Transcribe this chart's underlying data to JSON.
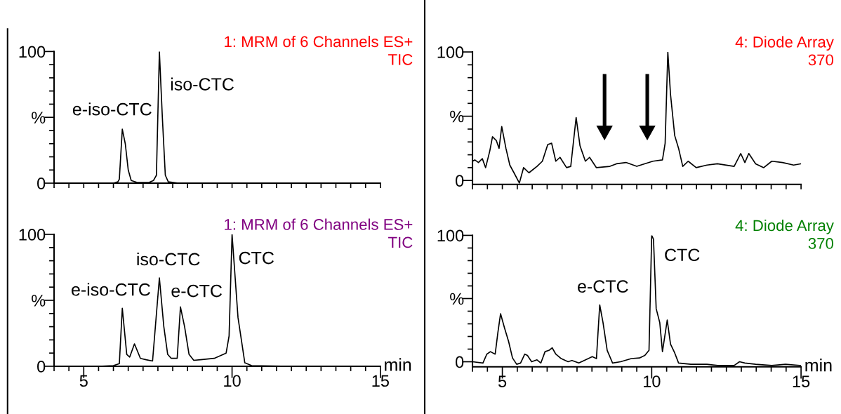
{
  "chart_data": [
    {
      "type": "line",
      "title": "1: MRM of 6 Channels ES+\nTIC",
      "tick_labels": "y",
      "xlim": [
        4,
        15
      ],
      "ylim": [
        0,
        100
      ],
      "xticks": [
        {
          "value": 4,
          "label": null
        },
        {
          "value": 4.5,
          "label": null
        },
        {
          "value": 5,
          "label": null
        },
        {
          "value": 5.5,
          "label": null
        },
        {
          "value": 6,
          "label": null
        },
        {
          "value": 6.5,
          "label": null
        },
        {
          "value": 7,
          "label": null
        },
        {
          "value": 7.5,
          "label": null
        },
        {
          "value": 8,
          "label": null
        },
        {
          "value": 8.5,
          "label": null
        },
        {
          "value": 9,
          "label": null
        },
        {
          "value": 9.5,
          "label": null
        },
        {
          "value": 10,
          "label": null
        },
        {
          "value": 10.5,
          "label": null
        },
        {
          "value": 11,
          "label": null
        },
        {
          "value": 11.5,
          "label": null
        },
        {
          "value": 12,
          "label": null
        },
        {
          "value": 12.5,
          "label": null
        },
        {
          "value": 13,
          "label": null
        },
        {
          "value": 13.5,
          "label": null
        },
        {
          "value": 14,
          "label": null
        },
        {
          "value": 14.5,
          "label": null
        },
        {
          "value": 15,
          "label": null
        }
      ],
      "yticks": [
        0,
        {
          "value": 10,
          "label": null
        },
        {
          "value": 20,
          "label": null
        },
        {
          "value": 30,
          "label": null
        },
        {
          "value": 40,
          "label": null
        },
        {
          "value": 50,
          "label": "%"
        },
        {
          "value": 60,
          "label": null
        },
        {
          "value": 70,
          "label": null
        },
        {
          "value": 80,
          "label": null
        },
        {
          "value": 90,
          "label": null
        },
        100
      ],
      "series": [
        {
          "color": "#000000",
          "x": [
            4,
            6.0,
            6.15,
            6.2,
            6.3,
            6.4,
            6.5,
            6.6,
            6.8,
            7.2,
            7.35,
            7.45,
            7.55,
            7.65,
            7.75,
            7.85,
            8.2,
            15
          ],
          "values": [
            0,
            0,
            1,
            3,
            41,
            30,
            10,
            2,
            0.5,
            0.5,
            2,
            6,
            100,
            50,
            6,
            1,
            0,
            0
          ]
        }
      ],
      "annotations": [
        "e-iso-CTC",
        "iso-CTC"
      ]
    },
    {
      "type": "line",
      "title": "4: Diode Array\n370",
      "tick_labels": "y",
      "xlim": [
        4,
        15
      ],
      "ylim": [
        -3,
        100
      ],
      "xticks": [
        {
          "value": 4,
          "label": null
        },
        {
          "value": 4.5,
          "label": null
        },
        {
          "value": 5,
          "label": null
        },
        {
          "value": 5.5,
          "label": null
        },
        {
          "value": 6,
          "label": null
        },
        {
          "value": 6.5,
          "label": null
        },
        {
          "value": 7,
          "label": null
        },
        {
          "value": 7.5,
          "label": null
        },
        {
          "value": 8,
          "label": null
        },
        {
          "value": 8.5,
          "label": null
        },
        {
          "value": 9,
          "label": null
        },
        {
          "value": 9.5,
          "label": null
        },
        {
          "value": 10,
          "label": null
        },
        {
          "value": 10.5,
          "label": null
        },
        {
          "value": 11,
          "label": null
        },
        {
          "value": 11.5,
          "label": null
        },
        {
          "value": 12,
          "label": null
        },
        {
          "value": 12.5,
          "label": null
        },
        {
          "value": 13,
          "label": null
        },
        {
          "value": 13.5,
          "label": null
        },
        {
          "value": 14,
          "label": null
        },
        {
          "value": 14.5,
          "label": null
        },
        {
          "value": 15,
          "label": null
        }
      ],
      "yticks": [
        0,
        {
          "value": 10,
          "label": null
        },
        {
          "value": 20,
          "label": null
        },
        {
          "value": 30,
          "label": null
        },
        {
          "value": 40,
          "label": null
        },
        {
          "value": 50,
          "label": "%"
        },
        {
          "value": 60,
          "label": null
        },
        {
          "value": 70,
          "label": null
        },
        {
          "value": 80,
          "label": null
        },
        {
          "value": 90,
          "label": null
        },
        100
      ],
      "series": [
        {
          "color": "#000000",
          "x": [
            4.0,
            4.08,
            4.2,
            4.33,
            4.44,
            4.58,
            4.67,
            4.8,
            4.89,
            4.98,
            5.12,
            5.25,
            5.39,
            5.57,
            5.71,
            5.89,
            6.16,
            6.34,
            6.52,
            6.65,
            6.79,
            6.93,
            7.15,
            7.29,
            7.47,
            7.6,
            7.78,
            7.92,
            8.15,
            8.6,
            8.82,
            9.14,
            9.5,
            10.04,
            10.36,
            10.45,
            10.54,
            10.63,
            10.77,
            10.9,
            11.04,
            11.22,
            11.49,
            11.85,
            12.2,
            12.76,
            12.98,
            13.12,
            13.25,
            13.48,
            13.75,
            14.02,
            14.38,
            14.75,
            15
          ],
          "values": [
            15,
            16,
            14,
            17,
            10,
            23,
            34,
            31,
            25,
            42,
            25,
            12,
            6,
            -2,
            10,
            6,
            11,
            15,
            28,
            29,
            15,
            18,
            10,
            11,
            49,
            27,
            15,
            18,
            10,
            11,
            13,
            14,
            11,
            15,
            16,
            29,
            100,
            67,
            35,
            25,
            11,
            15,
            10,
            12,
            13,
            11,
            21,
            14,
            21,
            13,
            10,
            15,
            14,
            12,
            13
          ]
        }
      ]
    },
    {
      "type": "line",
      "title": "1: MRM of 6 Channels ES+\nTIC",
      "xlabel": "min",
      "xlim": [
        4,
        15
      ],
      "ylim": [
        0,
        100
      ],
      "xticks": [
        {
          "value": 4,
          "label": null
        },
        {
          "value": 4.5,
          "label": null
        },
        5,
        {
          "value": 5.5,
          "label": null
        },
        {
          "value": 6,
          "label": null
        },
        {
          "value": 6.5,
          "label": null
        },
        {
          "value": 7,
          "label": null
        },
        {
          "value": 7.5,
          "label": null
        },
        {
          "value": 8,
          "label": null
        },
        {
          "value": 8.5,
          "label": null
        },
        {
          "value": 9,
          "label": null
        },
        {
          "value": 9.5,
          "label": null
        },
        10,
        {
          "value": 10.5,
          "label": null
        },
        {
          "value": 11,
          "label": null
        },
        {
          "value": 11.5,
          "label": null
        },
        {
          "value": 12,
          "label": null
        },
        {
          "value": 12.5,
          "label": null
        },
        {
          "value": 13,
          "label": null
        },
        {
          "value": 13.5,
          "label": null
        },
        {
          "value": 14,
          "label": null
        },
        {
          "value": 14.5,
          "label": null
        },
        15
      ],
      "yticks": [
        0,
        {
          "value": 10,
          "label": null
        },
        {
          "value": 20,
          "label": null
        },
        {
          "value": 30,
          "label": null
        },
        {
          "value": 40,
          "label": null
        },
        {
          "value": 50,
          "label": "%"
        },
        {
          "value": 60,
          "label": null
        },
        {
          "value": 70,
          "label": null
        },
        {
          "value": 80,
          "label": null
        },
        {
          "value": 90,
          "label": null
        },
        100
      ],
      "series": [
        {
          "color": "#000000",
          "x": [
            4,
            5.5,
            6.0,
            6.2,
            6.3,
            6.45,
            6.55,
            6.71,
            6.91,
            7.1,
            7.32,
            7.55,
            7.7,
            7.83,
            7.95,
            8.15,
            8.26,
            8.4,
            8.55,
            8.71,
            8.94,
            9.4,
            9.8,
            9.9,
            10.0,
            10.2,
            10.43,
            10.66,
            12,
            15
          ],
          "values": [
            0,
            0,
            0.5,
            2,
            44,
            9,
            7,
            17,
            6,
            5,
            4,
            67,
            30,
            9,
            6,
            6,
            45,
            30,
            9,
            4.5,
            5,
            6,
            10,
            23,
            100,
            37,
            2.6,
            0.5,
            0,
            0
          ]
        }
      ],
      "annotations": [
        "e-iso-CTC",
        "iso-CTC",
        "e-CTC",
        "CTC"
      ]
    },
    {
      "type": "line",
      "title": "4: Diode Array\n370",
      "xlabel": "min",
      "xlim": [
        4,
        15
      ],
      "ylim": [
        -4,
        100
      ],
      "xticks": [
        {
          "value": 4,
          "label": null
        },
        {
          "value": 4.5,
          "label": null
        },
        5,
        {
          "value": 5.5,
          "label": null
        },
        {
          "value": 6,
          "label": null
        },
        {
          "value": 6.5,
          "label": null
        },
        {
          "value": 7,
          "label": null
        },
        {
          "value": 7.5,
          "label": null
        },
        {
          "value": 8,
          "label": null
        },
        {
          "value": 8.5,
          "label": null
        },
        {
          "value": 9,
          "label": null
        },
        {
          "value": 9.5,
          "label": null
        },
        10,
        {
          "value": 10.5,
          "label": null
        },
        {
          "value": 11,
          "label": null
        },
        {
          "value": 11.5,
          "label": null
        },
        {
          "value": 12,
          "label": null
        },
        {
          "value": 12.5,
          "label": null
        },
        {
          "value": 13,
          "label": null
        },
        {
          "value": 13.5,
          "label": null
        },
        {
          "value": 14,
          "label": null
        },
        {
          "value": 14.5,
          "label": null
        },
        15
      ],
      "yticks": [
        0,
        {
          "value": 10,
          "label": null
        },
        {
          "value": 20,
          "label": null
        },
        {
          "value": 30,
          "label": null
        },
        {
          "value": 40,
          "label": null
        },
        {
          "value": 50,
          "label": "%"
        },
        {
          "value": 60,
          "label": null
        },
        {
          "value": 70,
          "label": null
        },
        {
          "value": 80,
          "label": null
        },
        {
          "value": 90,
          "label": null
        },
        100
      ],
      "series": [
        {
          "color": "#000000",
          "x": [
            4.0,
            4.35,
            4.48,
            4.6,
            4.76,
            4.85,
            4.94,
            5.07,
            5.21,
            5.34,
            5.48,
            5.61,
            5.75,
            5.84,
            5.98,
            6.16,
            6.29,
            6.43,
            6.56,
            6.67,
            6.79,
            6.97,
            7.2,
            7.33,
            7.56,
            7.74,
            8.01,
            8.15,
            8.26,
            8.37,
            8.51,
            8.69,
            8.96,
            9.32,
            9.59,
            9.77,
            9.91,
            10.0,
            10.06,
            10.15,
            10.27,
            10.36,
            10.52,
            10.63,
            10.77,
            10.9,
            11.31,
            11.85,
            12.21,
            12.76,
            12.94,
            13.12,
            13.48,
            14.02,
            14.48,
            15
          ],
          "values": [
            0,
            -1,
            6,
            8,
            6,
            23,
            38,
            27,
            16,
            3,
            -2,
            -1,
            6,
            5,
            0,
            1.5,
            -1,
            8,
            9,
            11,
            6,
            2.5,
            0,
            1,
            -1,
            1,
            4,
            2.5,
            45,
            31,
            9,
            -1,
            0,
            2.5,
            3,
            5,
            9,
            100,
            97,
            42,
            31,
            8,
            33,
            14,
            7,
            -1,
            -2,
            -2,
            -3,
            -3,
            0,
            -1,
            -2,
            -3,
            -2,
            -3
          ]
        }
      ],
      "annotations": [
        "e-CTC",
        "CTC"
      ]
    }
  ]
}
